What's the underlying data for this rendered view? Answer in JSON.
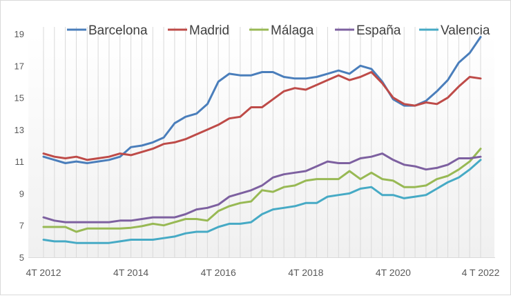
{
  "chart_data": {
    "type": "line",
    "title": "",
    "xlabel": "",
    "ylabel": "",
    "ylim": [
      5,
      19
    ],
    "yticks": [
      "5",
      "7",
      "9",
      "11",
      "13",
      "15",
      "17",
      "19"
    ],
    "xticks": [
      {
        "label": "4T 2012",
        "index": 0
      },
      {
        "label": "4T 2014",
        "index": 8
      },
      {
        "label": "4T 2016",
        "index": 16
      },
      {
        "label": "4T 2018",
        "index": 24
      },
      {
        "label": "4T 2020",
        "index": 32
      },
      {
        "label": "4 T 2022",
        "index": 40
      }
    ],
    "grid": "vertical",
    "legend": "top",
    "series": [
      {
        "name": "Barcelona",
        "color": "#4a7ebb",
        "values": [
          11.3,
          11.1,
          10.9,
          11.0,
          10.9,
          11.0,
          11.1,
          11.3,
          11.9,
          12.0,
          12.2,
          12.5,
          13.4,
          13.8,
          14.0,
          14.6,
          16.0,
          16.5,
          16.4,
          16.4,
          16.6,
          16.6,
          16.3,
          16.2,
          16.2,
          16.3,
          16.5,
          16.7,
          16.5,
          17.0,
          16.8,
          16.0,
          14.9,
          14.5,
          14.5,
          14.8,
          15.4,
          16.1,
          17.2,
          17.8,
          18.8
        ]
      },
      {
        "name": "Madrid",
        "color": "#be4b48",
        "values": [
          11.5,
          11.3,
          11.2,
          11.3,
          11.1,
          11.2,
          11.3,
          11.5,
          11.4,
          11.6,
          11.8,
          12.1,
          12.2,
          12.4,
          12.7,
          13.0,
          13.3,
          13.7,
          13.8,
          14.4,
          14.4,
          14.9,
          15.4,
          15.6,
          15.5,
          15.8,
          16.1,
          16.4,
          16.1,
          16.3,
          16.6,
          15.9,
          15.0,
          14.6,
          14.5,
          14.7,
          14.6,
          15.0,
          15.7,
          16.3,
          16.2
        ]
      },
      {
        "name": "Málaga",
        "color": "#98b954",
        "values": [
          6.9,
          6.9,
          6.9,
          6.6,
          6.8,
          6.8,
          6.8,
          6.8,
          6.85,
          6.95,
          7.1,
          7.0,
          7.2,
          7.4,
          7.4,
          7.3,
          7.9,
          8.2,
          8.4,
          8.5,
          9.2,
          9.1,
          9.4,
          9.5,
          9.8,
          9.9,
          9.9,
          9.9,
          10.4,
          9.9,
          10.3,
          9.9,
          9.8,
          9.4,
          9.4,
          9.5,
          9.9,
          10.1,
          10.5,
          11.0,
          11.8
        ]
      },
      {
        "name": "España",
        "color": "#7d60a0",
        "values": [
          7.5,
          7.3,
          7.2,
          7.2,
          7.2,
          7.2,
          7.2,
          7.3,
          7.3,
          7.4,
          7.5,
          7.5,
          7.5,
          7.7,
          8.0,
          8.1,
          8.3,
          8.8,
          9.0,
          9.2,
          9.5,
          10.0,
          10.2,
          10.3,
          10.4,
          10.7,
          11.0,
          10.9,
          10.9,
          11.2,
          11.3,
          11.5,
          11.1,
          10.8,
          10.7,
          10.5,
          10.6,
          10.8,
          11.2,
          11.2,
          11.3
        ]
      },
      {
        "name": "Valencia",
        "color": "#46aac5",
        "values": [
          6.1,
          6.0,
          6.0,
          5.9,
          5.9,
          5.9,
          5.9,
          6.0,
          6.1,
          6.1,
          6.1,
          6.2,
          6.3,
          6.5,
          6.6,
          6.6,
          6.9,
          7.1,
          7.1,
          7.2,
          7.7,
          8.0,
          8.1,
          8.2,
          8.4,
          8.4,
          8.8,
          8.9,
          9.0,
          9.3,
          9.4,
          8.9,
          8.9,
          8.7,
          8.8,
          8.9,
          9.3,
          9.7,
          10.0,
          10.5,
          11.1
        ]
      }
    ]
  }
}
